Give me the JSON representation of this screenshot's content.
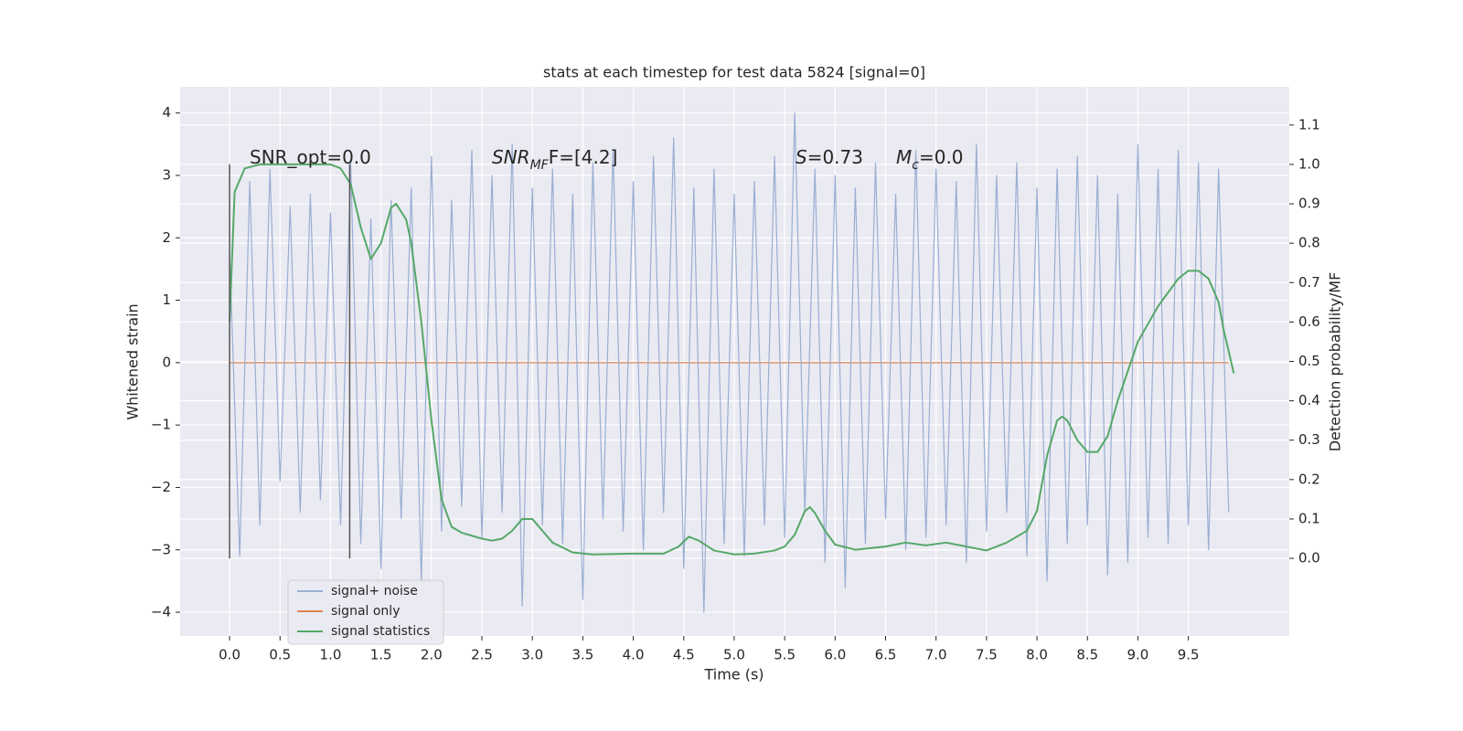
{
  "chart_data": {
    "type": "line",
    "title": "stats at each timestep for test data 5824 [signal=0]",
    "x_label": "Time (s)",
    "y_label": "Whitened strain",
    "y2_label": "Detection probability/MF",
    "xlim": [
      -0.49,
      10.5
    ],
    "ylim": [
      -4.38,
      4.42
    ],
    "y2lim": [
      -0.197,
      1.197
    ],
    "xticks": [
      {
        "value": 0,
        "label": "0.0"
      },
      0.5,
      {
        "value": 1,
        "label": "1.0"
      },
      1.5,
      {
        "value": 2,
        "label": "2.0"
      },
      2.5,
      {
        "value": 3,
        "label": "3.0"
      },
      3.5,
      {
        "value": 4,
        "label": "4.0"
      },
      4.5,
      {
        "value": 5,
        "label": "5.0"
      },
      5.5,
      {
        "value": 6,
        "label": "6.0"
      },
      6.5,
      {
        "value": 7,
        "label": "7.0"
      },
      7.5,
      {
        "value": 8,
        "label": "8.0"
      },
      8.5,
      {
        "value": 9,
        "label": "9.0"
      },
      9.5
    ],
    "yticks": [
      {
        "value": -4,
        "label": "−4"
      },
      {
        "value": -3,
        "label": "−3"
      },
      {
        "value": -2,
        "label": "−2"
      },
      {
        "value": -1,
        "label": "−1"
      },
      0,
      1,
      2,
      3,
      4
    ],
    "y2ticks": [
      {
        "value": 0,
        "label": "0.0"
      },
      0.1,
      0.2,
      0.3,
      0.4,
      0.5,
      0.6,
      0.7,
      0.8,
      0.9,
      {
        "value": 1,
        "label": "1.0"
      },
      1.1
    ],
    "grid": true,
    "legend": "lower left",
    "series": [
      {
        "name": "signal only",
        "color": "#dd8452",
        "x": [
          0,
          0.1,
          0.2,
          0.3,
          0.4,
          0.5,
          0.6,
          0.7,
          0.8,
          0.9,
          1,
          1.1,
          1.2,
          1.3,
          1.4,
          1.5,
          1.6,
          1.7,
          1.8,
          1.9,
          2,
          2.1,
          2.2,
          2.3,
          2.4,
          2.5,
          2.6,
          2.7,
          2.8,
          2.9,
          3,
          3.1,
          3.2,
          3.3,
          3.4,
          3.5,
          3.6,
          3.7,
          3.8,
          3.9,
          4,
          4.1,
          4.2,
          4.3,
          4.4,
          4.5,
          4.6,
          4.7,
          4.8,
          4.9,
          5,
          5.1,
          5.2,
          5.3,
          5.4,
          5.5,
          5.6,
          5.7,
          5.8,
          5.9,
          6,
          6.1,
          6.2,
          6.3,
          6.4,
          6.5,
          6.6,
          6.7,
          6.8,
          6.9,
          7,
          7.1,
          7.2,
          7.3,
          7.4,
          7.5,
          7.6,
          7.7,
          7.8,
          7.9,
          8,
          8.1,
          8.2,
          8.3,
          8.4,
          8.5,
          8.6,
          8.7,
          8.8,
          8.9,
          9,
          9.1,
          9.2,
          9.3,
          9.4,
          9.5,
          9.6,
          9.7,
          9.8,
          9.9
        ],
        "values": [
          0,
          0,
          0,
          0,
          0,
          0,
          0,
          0,
          0,
          0,
          0,
          0,
          0,
          0,
          0,
          0,
          0,
          0,
          0,
          0,
          0,
          0,
          0,
          0,
          0,
          0,
          0,
          0,
          0,
          0,
          0,
          0,
          0,
          0,
          0,
          0,
          0,
          0,
          0,
          0,
          0,
          0,
          0,
          0,
          0,
          0,
          0,
          0,
          0,
          0,
          0,
          0,
          0,
          0,
          0,
          0,
          0,
          0,
          0,
          0,
          0,
          0,
          0,
          0,
          0,
          0,
          0,
          0,
          0,
          0,
          0,
          0,
          0,
          0,
          0,
          0,
          0,
          0,
          0,
          0,
          0,
          0,
          0,
          0,
          0,
          0,
          0,
          0,
          0,
          0,
          0,
          0,
          0,
          0,
          0,
          0,
          0,
          0,
          0,
          0
        ]
      },
      {
        "name": "signal+ noise",
        "color": "#9aaed3",
        "x": [
          0,
          0.1,
          0.2,
          0.3,
          0.4,
          0.5,
          0.6,
          0.7,
          0.8,
          0.9,
          1,
          1.1,
          1.2,
          1.3,
          1.4,
          1.5,
          1.6,
          1.7,
          1.8,
          1.9,
          2,
          2.1,
          2.2,
          2.3,
          2.4,
          2.5,
          2.6,
          2.7,
          2.8,
          2.9,
          3,
          3.1,
          3.2,
          3.3,
          3.4,
          3.5,
          3.6,
          3.7,
          3.8,
          3.9,
          4,
          4.1,
          4.2,
          4.3,
          4.4,
          4.5,
          4.6,
          4.7,
          4.8,
          4.9,
          5,
          5.1,
          5.2,
          5.3,
          5.4,
          5.5,
          5.6,
          5.7,
          5.8,
          5.9,
          6,
          6.1,
          6.2,
          6.3,
          6.4,
          6.5,
          6.6,
          6.7,
          6.8,
          6.9,
          7,
          7.1,
          7.2,
          7.3,
          7.4,
          7.5,
          7.6,
          7.7,
          7.8,
          7.9,
          8,
          8.1,
          8.2,
          8.3,
          8.4,
          8.5,
          8.6,
          8.7,
          8.8,
          8.9,
          9,
          9.1,
          9.2,
          9.3,
          9.4,
          9.5,
          9.6,
          9.7,
          9.8,
          9.9
        ],
        "values": [
          1.8,
          -3.1,
          2.9,
          -2.6,
          3.1,
          -1.9,
          2.5,
          -2.4,
          2.7,
          -2.2,
          2.4,
          -2.6,
          3.2,
          -2.9,
          2.3,
          -3.3,
          2.6,
          -2.5,
          2.8,
          -3.5,
          3.3,
          -2.7,
          2.6,
          -2.3,
          3.4,
          -2.8,
          3.0,
          -2.4,
          3.5,
          -3.9,
          2.8,
          -2.6,
          3.1,
          -2.9,
          2.7,
          -3.8,
          3.2,
          -2.5,
          3.4,
          -2.7,
          2.9,
          -3.0,
          3.3,
          -2.4,
          3.6,
          -3.3,
          2.8,
          -4.0,
          3.1,
          -2.9,
          2.7,
          -3.1,
          2.9,
          -2.6,
          3.3,
          -2.8,
          4.0,
          -2.4,
          3.1,
          -3.2,
          3.0,
          -3.6,
          2.8,
          -2.9,
          3.2,
          -2.5,
          2.7,
          -3.0,
          3.4,
          -2.8,
          3.1,
          -2.6,
          2.9,
          -3.2,
          3.5,
          -2.7,
          3.0,
          -2.4,
          3.2,
          -3.1,
          2.8,
          -3.5,
          3.1,
          -2.9,
          3.3,
          -2.6,
          3.0,
          -3.4,
          2.7,
          -3.2,
          3.5,
          -2.8,
          3.1,
          -2.9,
          3.4,
          -2.6,
          3.2,
          -3.0,
          3.1,
          -2.4
        ]
      },
      {
        "name": "signal statistics",
        "color": "#55a868",
        "axis": "y2",
        "x": [
          0,
          0.05,
          0.15,
          0.3,
          1.0,
          1.1,
          1.2,
          1.3,
          1.4,
          1.5,
          1.6,
          1.65,
          1.75,
          1.8,
          1.9,
          2.0,
          2.1,
          2.2,
          2.3,
          2.5,
          2.6,
          2.7,
          2.8,
          2.9,
          3.0,
          3.1,
          3.2,
          3.4,
          3.6,
          4.0,
          4.3,
          4.45,
          4.55,
          4.65,
          4.8,
          5.0,
          5.2,
          5.4,
          5.5,
          5.6,
          5.7,
          5.75,
          5.8,
          5.9,
          6.0,
          6.2,
          6.5,
          6.7,
          6.9,
          7.1,
          7.2,
          7.5,
          7.7,
          7.9,
          8.0,
          8.1,
          8.2,
          8.25,
          8.3,
          8.4,
          8.5,
          8.6,
          8.7,
          8.8,
          9.0,
          9.2,
          9.4,
          9.5,
          9.6,
          9.7,
          9.8,
          9.85,
          9.95
        ],
        "values": [
          0.6,
          0.93,
          0.99,
          1.0,
          1.0,
          0.99,
          0.95,
          0.84,
          0.76,
          0.8,
          0.89,
          0.9,
          0.86,
          0.8,
          0.6,
          0.35,
          0.15,
          0.08,
          0.065,
          0.05,
          0.045,
          0.05,
          0.07,
          0.1,
          0.1,
          0.07,
          0.04,
          0.015,
          0.01,
          0.012,
          0.012,
          0.03,
          0.055,
          0.045,
          0.02,
          0.01,
          0.012,
          0.02,
          0.03,
          0.06,
          0.12,
          0.13,
          0.115,
          0.07,
          0.035,
          0.022,
          0.03,
          0.04,
          0.033,
          0.04,
          0.035,
          0.02,
          0.04,
          0.07,
          0.12,
          0.26,
          0.35,
          0.36,
          0.35,
          0.3,
          0.27,
          0.27,
          0.31,
          0.4,
          0.55,
          0.64,
          0.71,
          0.73,
          0.73,
          0.71,
          0.65,
          0.58,
          0.47
        ]
      }
    ],
    "vlines": {
      "x": [
        0,
        1.19
      ],
      "y2": [
        0,
        1.0
      ],
      "color": "#555555"
    },
    "annotations": [
      [
        {
          "text": "SNR_opt=0.0",
          "style": "normal"
        }
      ],
      [
        {
          "text": "SNR",
          "style": "italic"
        },
        {
          "text": "MF",
          "style": "sub"
        },
        {
          "text": "F=[4.2]",
          "style": "normal"
        }
      ],
      [
        {
          "text": "S",
          "style": "italic"
        },
        {
          "text": "=0.73",
          "style": "normal"
        }
      ],
      [
        {
          "text": "M",
          "style": "italic"
        },
        {
          "text": "c",
          "style": "sub"
        },
        {
          "text": "=0.0",
          "style": "normal"
        }
      ]
    ]
  }
}
